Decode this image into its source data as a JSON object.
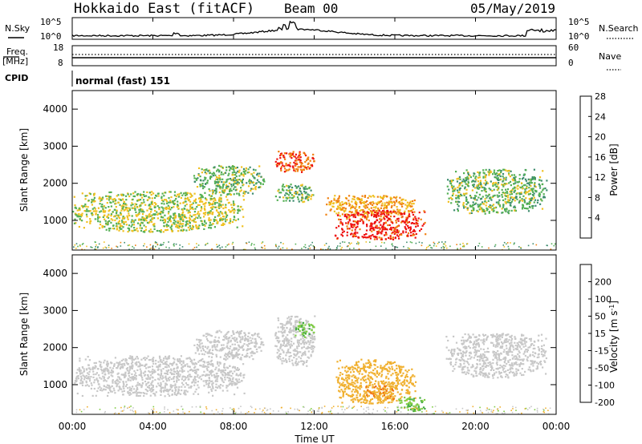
{
  "header": {
    "site": "Hokkaido East (fitACF)",
    "beam": "Beam 00",
    "date": "05/May/2019"
  },
  "noise_panel": {
    "left_label": "N.Sky",
    "right_label": "N.Search",
    "left_ticks": [
      "10^5",
      "10^0"
    ],
    "right_ticks": [
      "10^5",
      "10^0"
    ]
  },
  "freq_panel": {
    "left_label_line1": "Freq.",
    "left_label_line2": "[MHz]",
    "left_ticks": [
      "18",
      "8"
    ],
    "right_label": "Nave",
    "right_ticks": [
      "60",
      "0"
    ]
  },
  "cpid_panel": {
    "label": "CPID",
    "value": "normal (fast) 151"
  },
  "power_panel": {
    "ylabel": "Slant Range [km]",
    "yticks": [
      "1000",
      "2000",
      "3000",
      "4000"
    ],
    "colorbar_label": "Power [dB]",
    "colorbar_ticks": [
      "4",
      "8",
      "12",
      "16",
      "20",
      "24",
      "28"
    ],
    "colors": [
      "#0000ee",
      "#2255aa",
      "#3d8c6e",
      "#55b055",
      "#f0c020",
      "#f08010",
      "#ee1010"
    ]
  },
  "velocity_panel": {
    "ylabel": "Slant Range [km]",
    "yticks": [
      "1000",
      "2000",
      "3000",
      "4000"
    ],
    "colorbar_label": "Velocity [m s^-1]",
    "colorbar_ticks": [
      "200",
      "100",
      "50",
      "15",
      "-15",
      "-50",
      "-100",
      "-200"
    ],
    "colors": [
      "#2233bb",
      "#2a7a66",
      "#44aa44",
      "#7fcc44",
      "#c8c8c8",
      "#f0b030",
      "#f07010",
      "#ee1010"
    ]
  },
  "xaxis": {
    "label": "Time UT",
    "ticks": [
      "00:00",
      "04:00",
      "08:00",
      "12:00",
      "16:00",
      "20:00",
      "00:00"
    ]
  },
  "chart_data": {
    "type": "heatmap",
    "x_range_hours": [
      0,
      24
    ],
    "y_range_km": [
      200,
      4500
    ],
    "power_regions": [
      {
        "x": [
          0,
          8.5
        ],
        "y": [
          700,
          1800
        ],
        "value": 18
      },
      {
        "x": [
          6,
          9.5
        ],
        "y": [
          1700,
          2500
        ],
        "value": 16
      },
      {
        "x": [
          10,
          12
        ],
        "y": [
          2300,
          2900
        ],
        "value": 26
      },
      {
        "x": [
          10,
          12
        ],
        "y": [
          1500,
          2000
        ],
        "value": 16
      },
      {
        "x": [
          12.5,
          17
        ],
        "y": [
          1100,
          1700
        ],
        "value": 22
      },
      {
        "x": [
          13,
          17.5
        ],
        "y": [
          500,
          1300
        ],
        "value": 28
      },
      {
        "x": [
          18.5,
          23.5
        ],
        "y": [
          1200,
          2400
        ],
        "value": 16
      }
    ],
    "velocity_regions": [
      {
        "x": [
          0,
          8.5
        ],
        "y": [
          700,
          1800
        ],
        "value": 0
      },
      {
        "x": [
          6,
          9.5
        ],
        "y": [
          1700,
          2500
        ],
        "value": 0
      },
      {
        "x": [
          10,
          12
        ],
        "y": [
          1500,
          2900
        ],
        "value": 0
      },
      {
        "x": [
          11,
          12
        ],
        "y": [
          2300,
          2700
        ],
        "value": 30
      },
      {
        "x": [
          13,
          17
        ],
        "y": [
          500,
          1700
        ],
        "value": -30
      },
      {
        "x": [
          14.5,
          16
        ],
        "y": [
          600,
          1000
        ],
        "value": -50
      },
      {
        "x": [
          16,
          17.5
        ],
        "y": [
          300,
          700
        ],
        "value": 30
      },
      {
        "x": [
          18.5,
          23.5
        ],
        "y": [
          1200,
          2400
        ],
        "value": 0
      }
    ]
  }
}
